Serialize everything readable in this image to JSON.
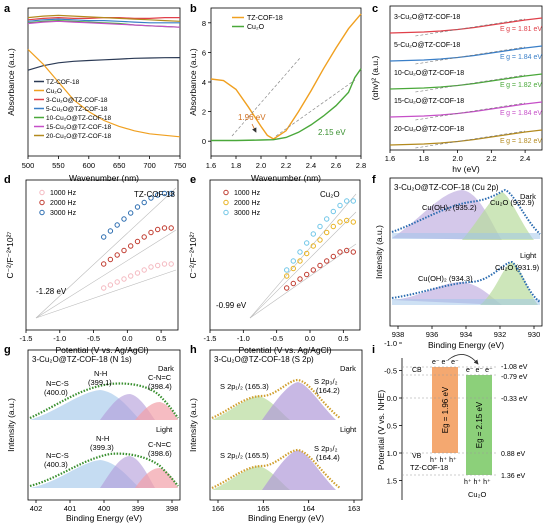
{
  "colors": {
    "tz_cof": "#2b3a55",
    "cu2o": "#f0a020",
    "p3": "#e0404a",
    "p5": "#3a7fc8",
    "p10": "#4aa83a",
    "p15": "#c64fc8",
    "p20": "#b38a1e",
    "hz1000": "#f4b9c0",
    "hz2000": "#c03a2e",
    "hz3000": "#2b6cb0",
    "e_hz1000": "#e8e0f0",
    "e_hz2000": "#e9b320",
    "e_hz3000": "#6fc6e8",
    "fit_blue": "#9ec5ea",
    "fit_purple": "#b09ad8",
    "fit_green": "#b8dc9c",
    "fit_red": "#f2a0a8",
    "fit_orange": "#f4c090",
    "cb_orange": "#f4a870",
    "cb_green": "#8cd07a"
  },
  "chart_data": [
    {
      "panel": "a",
      "type": "line",
      "xlabel": "Wavenumber (nm)",
      "ylabel": "Absorbance (a.u.)",
      "xlim": [
        500,
        750
      ],
      "xticks": [
        500,
        550,
        600,
        650,
        700,
        750
      ],
      "legend": [
        "TZ-COF-18",
        "Cu₂O",
        "3-Cu₂O@TZ-COF-18",
        "5-Cu₂O@TZ-COF-18",
        "10-Cu₂O@TZ-COF-18",
        "15-Cu₂O@TZ-COF-18",
        "20-Cu₂O@TZ-COF-18"
      ],
      "x": [
        500,
        525,
        550,
        575,
        600,
        625,
        650,
        675,
        700,
        725,
        750
      ],
      "series": [
        {
          "name": "TZ-COF-18",
          "values": [
            0.58,
            0.61,
            0.63,
            0.64,
            0.645,
            0.65,
            0.655,
            0.66,
            0.662,
            0.664,
            0.665
          ]
        },
        {
          "name": "Cu₂O",
          "values": [
            0.72,
            0.62,
            0.5,
            0.38,
            0.3,
            0.24,
            0.2,
            0.17,
            0.15,
            0.14,
            0.13
          ]
        },
        {
          "name": "3-Cu₂O@TZ-COF-18",
          "values": [
            0.92,
            0.93,
            0.935,
            0.93,
            0.93,
            0.935,
            0.935,
            0.93,
            0.93,
            0.935,
            0.935
          ]
        },
        {
          "name": "5-Cu₂O@TZ-COF-18",
          "values": [
            0.91,
            0.92,
            0.925,
            0.92,
            0.915,
            0.915,
            0.91,
            0.905,
            0.9,
            0.9,
            0.9
          ]
        },
        {
          "name": "10-Cu₂O@TZ-COF-18",
          "values": [
            0.9,
            0.91,
            0.915,
            0.91,
            0.905,
            0.9,
            0.895,
            0.885,
            0.88,
            0.875,
            0.87
          ]
        },
        {
          "name": "15-Cu₂O@TZ-COF-18",
          "values": [
            0.895,
            0.905,
            0.91,
            0.905,
            0.9,
            0.895,
            0.89,
            0.885,
            0.88,
            0.875,
            0.87
          ]
        },
        {
          "name": "20-Cu₂O@TZ-COF-18",
          "values": [
            0.935,
            0.945,
            0.95,
            0.945,
            0.94,
            0.935,
            0.93,
            0.925,
            0.92,
            0.915,
            0.91
          ]
        }
      ]
    },
    {
      "panel": "b",
      "type": "line",
      "xlabel": "Wavenumber (nm)",
      "ylabel": "Absorbance (a.u.)",
      "xlim": [
        1.6,
        2.8
      ],
      "ylim": [
        -1,
        9
      ],
      "xticks": [
        1.6,
        1.8,
        2.0,
        2.2,
        2.4,
        2.6,
        2.8
      ],
      "yticks": [
        0,
        2,
        4,
        6,
        8
      ],
      "legend": [
        "TZ-COF-18",
        "Cu₂O"
      ],
      "annotations": [
        "1.96 eV",
        "2.15 eV"
      ],
      "series": [
        {
          "name": "TZ-COF-18",
          "x": [
            1.6,
            1.7,
            1.8,
            1.9,
            2.0,
            2.05,
            2.1,
            2.2,
            2.3,
            2.4,
            2.5,
            2.6,
            2.7,
            2.8
          ],
          "values": [
            4.2,
            4.1,
            3.5,
            2.3,
            1.0,
            0.4,
            0.15,
            0.7,
            2.0,
            3.4,
            4.9,
            6.3,
            7.6,
            8.6
          ]
        },
        {
          "name": "Cu₂O",
          "x": [
            1.6,
            1.8,
            2.0,
            2.1,
            2.2,
            2.3,
            2.4,
            2.5,
            2.6,
            2.7,
            2.75,
            2.8
          ],
          "values": [
            0.05,
            0.05,
            0.08,
            0.1,
            0.25,
            0.6,
            1.1,
            1.7,
            2.4,
            3.3,
            4.3,
            4.9
          ]
        }
      ]
    },
    {
      "panel": "c",
      "type": "line",
      "xlabel": "hv (eV)",
      "ylabel": "(αhv)² (a.u.)",
      "xlim": [
        1.6,
        2.5
      ],
      "xticks": [
        1.6,
        1.8,
        2.0,
        2.2,
        2.4
      ],
      "series": [
        {
          "name": "3-Cu₂O@TZ-COF-18",
          "eg": "E g = 1.81 eV"
        },
        {
          "name": "5-Cu₂O@TZ-COF-18",
          "eg": "E g = 1.84 eV"
        },
        {
          "name": "10-Cu₂O@TZ-COF-18",
          "eg": "E g = 1.82 eV"
        },
        {
          "name": "15-Cu₂O@TZ-COF-18",
          "eg": "E g = 1.84 eV"
        },
        {
          "name": "20-Cu₂O@TZ-COF-18",
          "eg": "E g = 1.82 eV"
        }
      ]
    },
    {
      "panel": "d",
      "type": "scatter",
      "title": "TZ-COF-18",
      "xlabel": "Potential (V vs. Ag/AgCl)",
      "ylabel": "C⁻²/F⁻²*10²⁷",
      "xlim": [
        -1.5,
        0.75
      ],
      "xticks": [
        -1.5,
        -1.0,
        -0.5,
        0.0,
        0.5
      ],
      "legend": [
        "1000 Hz",
        "2000 Hz",
        "3000 Hz"
      ],
      "annotations": [
        "-1.28 eV"
      ],
      "x": [
        -0.35,
        -0.25,
        -0.15,
        -0.05,
        0.05,
        0.15,
        0.25,
        0.35,
        0.45,
        0.55,
        0.65
      ],
      "series": [
        {
          "name": "1000 Hz",
          "values": [
            0.28,
            0.3,
            0.32,
            0.34,
            0.36,
            0.38,
            0.4,
            0.42,
            0.43,
            0.44,
            0.44
          ]
        },
        {
          "name": "2000 Hz",
          "values": [
            0.44,
            0.47,
            0.5,
            0.53,
            0.56,
            0.59,
            0.62,
            0.65,
            0.67,
            0.68,
            0.68
          ]
        },
        {
          "name": "3000 Hz",
          "values": [
            0.62,
            0.66,
            0.7,
            0.74,
            0.78,
            0.82,
            0.85,
            0.88,
            0.9,
            0.91,
            0.91
          ]
        }
      ]
    },
    {
      "panel": "e",
      "type": "scatter",
      "title": "Cu₂O",
      "xlabel": "Potential (V vs. Ag/AgCl)",
      "ylabel": "C⁻²/F⁻²*10²⁷",
      "xlim": [
        -1.5,
        0.75
      ],
      "xticks": [
        -1.5,
        -1.0,
        -0.5,
        0.0,
        0.5
      ],
      "legend": [
        "1000 Hz",
        "2000 Hz",
        "3000 Hz"
      ],
      "annotations": [
        "-0.99 eV"
      ],
      "x": [
        -0.35,
        -0.25,
        -0.15,
        -0.05,
        0.05,
        0.15,
        0.25,
        0.35,
        0.45,
        0.55,
        0.65
      ],
      "series": [
        {
          "name": "1000 Hz",
          "values": [
            0.28,
            0.31,
            0.34,
            0.37,
            0.4,
            0.43,
            0.46,
            0.49,
            0.52,
            0.53,
            0.52
          ]
        },
        {
          "name": "2000 Hz",
          "values": [
            0.36,
            0.41,
            0.46,
            0.51,
            0.56,
            0.6,
            0.65,
            0.69,
            0.72,
            0.73,
            0.72
          ]
        },
        {
          "name": "3000 Hz",
          "values": [
            0.4,
            0.46,
            0.52,
            0.58,
            0.64,
            0.69,
            0.74,
            0.79,
            0.83,
            0.86,
            0.86
          ]
        }
      ]
    }
  ],
  "panel_labels": [
    "a",
    "b",
    "c",
    "d",
    "e",
    "f",
    "g",
    "h",
    "i"
  ],
  "xps": {
    "f": {
      "title": "3-Cu₂O@TZ-COF-18 (Cu 2p)",
      "xlabel": "Binding Energy (eV)",
      "ylabel": "Intensity (a.u.)",
      "xticks": [
        "938",
        "936",
        "934",
        "932",
        "930"
      ],
      "dark": "Dark",
      "light": "Light",
      "dark_peaks": [
        "Cu(OH)₂ (935.2)",
        "Cu₂O (932.9)"
      ],
      "light_peaks": [
        "Cu(OH)₂ (934.3)",
        "Cu₂O (931.9)"
      ]
    },
    "g": {
      "title": "3-Cu₂O@TZ-COF-18 (N 1s)",
      "xlabel": "Binding Energy (eV)",
      "ylabel": "Intensity (a.u.)",
      "xticks": [
        "402",
        "401",
        "400",
        "399",
        "398"
      ],
      "dark": "Dark",
      "light": "Light",
      "dark_peaks": [
        "N=C-S",
        "(400.0)",
        "N-H",
        "(399.1)",
        "C-N=C",
        "(398.4)"
      ],
      "light_peaks": [
        "N=C-S",
        "(400.3)",
        "N-H",
        "(399.3)",
        "C-N=C",
        "(398.6)"
      ]
    },
    "h": {
      "title": "3-Cu₂O@TZ-COF-18 (S 2p)",
      "xlabel": "Binding Energy (eV)",
      "ylabel": "Intensity (a.u.)",
      "xticks": [
        "166",
        "165",
        "164",
        "163"
      ],
      "dark": "Dark",
      "light": "Light",
      "dark_peaks": [
        "S 2p₁/₂ (165.3)",
        "S 2p₃/₂",
        "(164.2)"
      ],
      "light_peaks": [
        "S 2p₁/₂ (165.5)",
        "S 2p₃/₂",
        "(164.4)"
      ]
    }
  },
  "band": {
    "ylabel": "Potential (V vs. NHE)",
    "yticks": [
      "-1.0",
      "-0.5",
      "0.0",
      "0.5",
      "1.0",
      "1.5"
    ],
    "levels": [
      "-1.08 eV",
      "-0.79 eV",
      "-0.33 eV",
      "0.88 eV",
      "1.36 eV"
    ],
    "cb": "CB",
    "vb": "VB",
    "eg_left": "Eg = 1.96 eV",
    "eg_right": "Eg = 2.15 eV",
    "left_name": "TZ-COF-18",
    "right_name": "Cu₂O",
    "electrons": "e⁻ e⁻ e⁻",
    "holes": "h⁺ h⁺ h⁺"
  }
}
